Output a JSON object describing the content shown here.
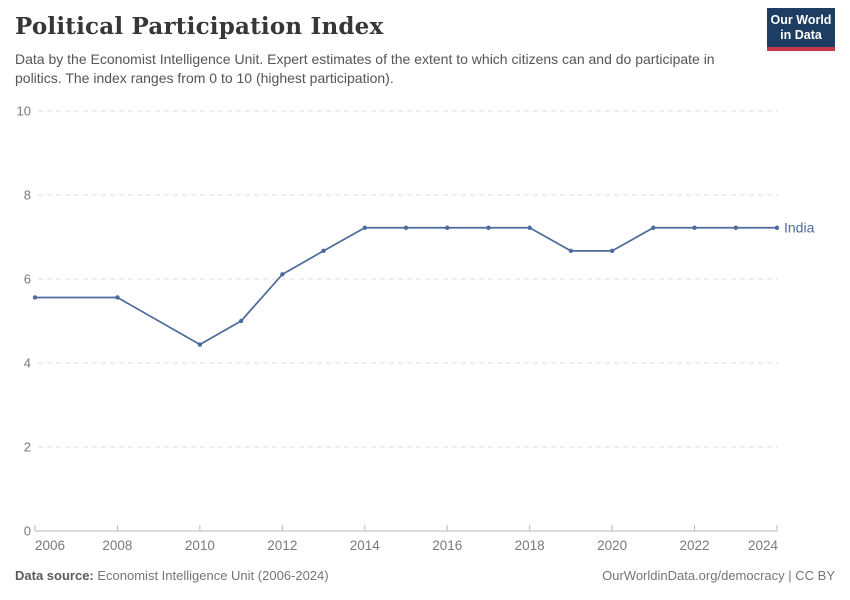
{
  "header": {
    "title": "Political Participation Index",
    "subtitle": "Data by the Economist Intelligence Unit. Expert estimates of the extent to which citizens can and do participate in politics. The index ranges from 0 to 10 (highest participation).",
    "logo": {
      "line1": "Our World",
      "line2": "in Data",
      "bg_color": "#1d3d63",
      "stripe_color": "#c5384a"
    }
  },
  "chart_data": {
    "type": "line",
    "title": "Political Participation Index",
    "x": [
      2006,
      2008,
      2010,
      2011,
      2012,
      2013,
      2014,
      2015,
      2016,
      2017,
      2018,
      2019,
      2020,
      2021,
      2022,
      2023,
      2024
    ],
    "series": [
      {
        "name": "India",
        "color": "#4c6a9c",
        "values": [
          5.56,
          5.56,
          4.44,
          5.0,
          6.11,
          6.67,
          7.22,
          7.22,
          7.22,
          7.22,
          7.22,
          6.67,
          6.67,
          7.22,
          7.22,
          7.22,
          7.22
        ]
      }
    ],
    "xlim": [
      2006,
      2024
    ],
    "ylim": [
      0,
      10
    ],
    "x_ticks": [
      2006,
      2008,
      2010,
      2012,
      2014,
      2016,
      2018,
      2020,
      2022,
      2024
    ],
    "y_ticks": [
      0,
      2,
      4,
      6,
      8,
      10
    ],
    "xlabel": "",
    "ylabel": "",
    "grid": "horizontal-dashed",
    "legend": "end-of-line-label",
    "colors": {
      "grid": "#dedede",
      "axis": "#b9b9b9",
      "tick_label": "#7a7a7a"
    }
  },
  "footer": {
    "datasource_label": "Data source:",
    "datasource_value": " Economist Intelligence Unit (2006-2024)",
    "credit": "OurWorldinData.org/democracy | CC BY"
  }
}
